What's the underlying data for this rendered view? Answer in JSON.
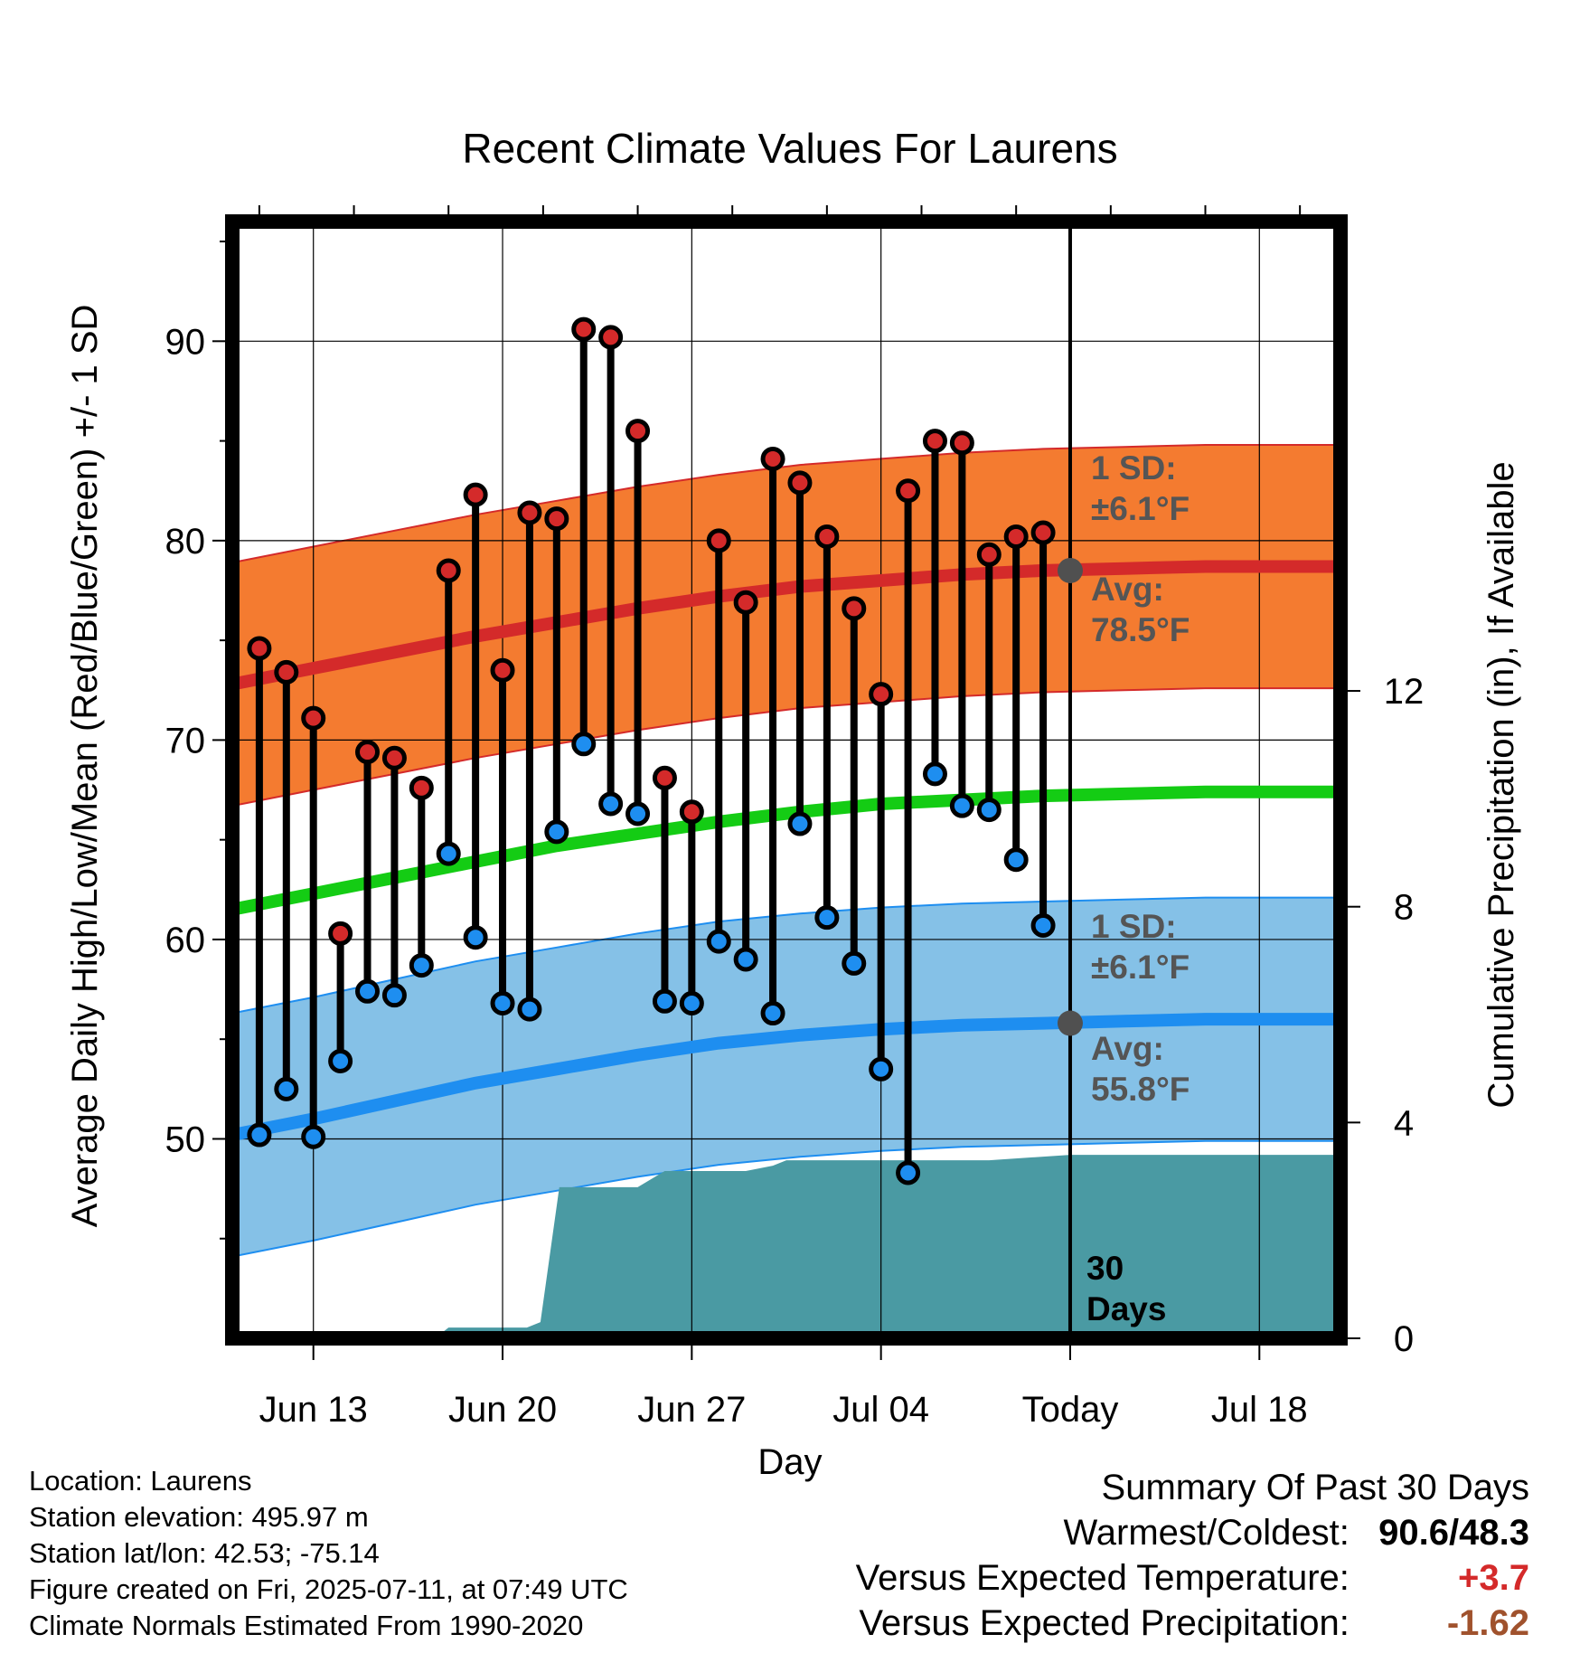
{
  "title": "Recent Climate Values For Laurens",
  "xlabel": "Day",
  "ylabel_left": "Average Daily High/Low/Mean (Red/Blue/Green) +/- 1 SD",
  "ylabel_right": "Cumulative Precipitation (in), If Available",
  "annotations": {
    "high_sd_line1": "1 SD:",
    "high_sd_line2": "±6.1°F",
    "high_avg_line1": "Avg:",
    "high_avg_line2": "78.5°F",
    "low_sd_line1": "1 SD:",
    "low_sd_line2": "±6.1°F",
    "low_avg_line1": "Avg:",
    "low_avg_line2": "55.8°F",
    "days_line1": "30",
    "days_line2": "Days"
  },
  "colors": {
    "high_band": "#f47b30",
    "high_avg": "#d42a2a",
    "low_band": "#85c1e7",
    "low_avg": "#1e8ef0",
    "mean_avg": "#14cc14",
    "precip": "#4a9aa3",
    "high_dot": "#d42a2a",
    "low_dot": "#1e8ef0",
    "avg_marker": "#505050",
    "annotation_text": "#555555",
    "warm_value": "#d42a2a",
    "precip_value": "#a0522d"
  },
  "chart_data": {
    "type": "line",
    "x_ticks": [
      "Jun 13",
      "Jun 20",
      "Jun 27",
      "Jul 04",
      "Today",
      "Jul 18"
    ],
    "x_tick_days": [
      3,
      10,
      17,
      24,
      31,
      38
    ],
    "x_range": [
      0,
      41
    ],
    "y_range": [
      40,
      96
    ],
    "y_ticks": [
      50,
      60,
      70,
      80,
      90
    ],
    "y2_range": [
      0,
      20.7
    ],
    "y2_ticks": [
      0,
      4,
      8,
      12
    ],
    "today_day": 31,
    "grid": true,
    "daily_obs": {
      "days": [
        1,
        2,
        3,
        4,
        5,
        6,
        7,
        8,
        9,
        10,
        11,
        12,
        13,
        14,
        15,
        16,
        17,
        18,
        19,
        20,
        21,
        22,
        23,
        24,
        25,
        26,
        27,
        28,
        29,
        30
      ],
      "high": [
        74.6,
        73.4,
        71.1,
        60.3,
        69.4,
        69.1,
        67.6,
        78.5,
        82.3,
        73.5,
        81.4,
        81.1,
        90.6,
        90.2,
        85.5,
        68.1,
        66.4,
        80.0,
        76.9,
        84.1,
        82.9,
        80.2,
        76.6,
        72.3,
        82.5,
        85.0,
        84.9,
        79.3,
        80.2,
        80.4
      ],
      "low": [
        50.2,
        52.5,
        50.1,
        53.9,
        57.4,
        57.2,
        58.7,
        64.3,
        60.1,
        56.8,
        56.5,
        65.4,
        69.8,
        66.8,
        66.3,
        56.9,
        56.8,
        59.9,
        59.0,
        56.3,
        65.8,
        61.1,
        58.8,
        53.5,
        48.3,
        68.3,
        66.7,
        66.5,
        64.0,
        60.7
      ]
    },
    "normals": {
      "days": [
        0,
        3,
        6,
        9,
        12,
        15,
        18,
        21,
        24,
        27,
        30,
        33,
        36,
        41
      ],
      "high_avg": [
        72.8,
        73.6,
        74.4,
        75.2,
        75.9,
        76.6,
        77.2,
        77.7,
        78.0,
        78.3,
        78.5,
        78.6,
        78.7,
        78.7
      ],
      "high_sd": 6.1,
      "low_avg": [
        50.2,
        51.0,
        51.9,
        52.8,
        53.5,
        54.2,
        54.8,
        55.2,
        55.5,
        55.7,
        55.8,
        55.9,
        56.0,
        56.0
      ],
      "low_sd": 6.1,
      "mean_avg": [
        61.5,
        62.3,
        63.1,
        63.9,
        64.7,
        65.3,
        65.9,
        66.4,
        66.8,
        67.0,
        67.2,
        67.3,
        67.4,
        67.4
      ]
    },
    "precip": {
      "days": [
        0,
        7.5,
        8,
        10.9,
        11.4,
        12.1,
        15,
        16,
        17,
        18,
        19,
        20,
        20.5,
        21.5,
        22,
        24,
        26,
        28,
        31,
        34,
        38,
        41
      ],
      "cumulative": [
        0,
        0,
        0.2,
        0.2,
        0.3,
        2.8,
        2.8,
        3.1,
        3.1,
        3.1,
        3.1,
        3.2,
        3.3,
        3.3,
        3.3,
        3.3,
        3.3,
        3.3,
        3.4,
        3.4,
        3.4,
        3.4
      ]
    },
    "avg_markers": {
      "high": 78.5,
      "low": 55.8
    }
  },
  "info": {
    "location": "Location: Laurens",
    "elevation": "Station elevation: 495.97 m",
    "latlon": "Station lat/lon: 42.53; -75.14",
    "created": "Figure created on Fri, 2025-07-11, at 07:49 UTC",
    "normals": "Climate Normals Estimated From 1990-2020"
  },
  "summary": {
    "heading": "Summary Of Past 30 Days",
    "warm_label": "Warmest/Coldest:",
    "warm_value": "90.6/48.3",
    "temp_label": "Versus Expected Temperature:",
    "temp_value": "+3.7",
    "precip_label": "Versus Expected Precipitation:",
    "precip_value": "-1.62"
  }
}
